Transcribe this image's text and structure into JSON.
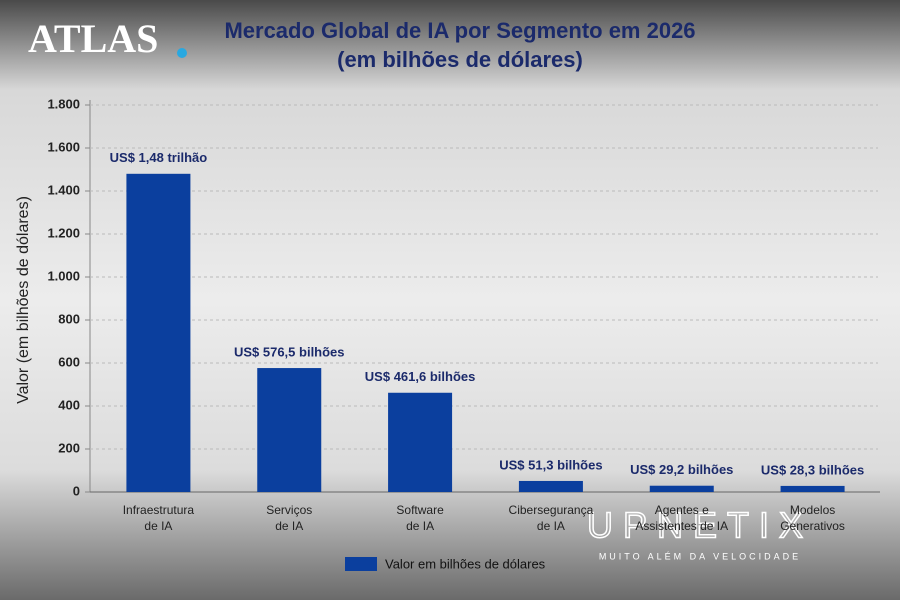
{
  "branding": {
    "logo": "ATLAS",
    "watermark": "UPNETIX",
    "watermark_tagline": "MUITO ALÉM DA VELOCIDADE"
  },
  "chart_data": {
    "type": "bar",
    "title": "Mercado Global de IA por Segmento em 2026",
    "subtitle": "(em bilhões de dólares)",
    "y_label": "Valor (em bilhões de dólares)",
    "categories": [
      "Infraestrutura\nde IA",
      "Serviços\nde IA",
      "Software\nde IA",
      "Cibersegurança\nde IA",
      "Agentes e\nAssistentes de IA",
      "Modelos\nGenerativos"
    ],
    "series": [
      {
        "name": "Valor em bilhões de dólares",
        "color": "#0b3f9e",
        "values": [
          1480,
          576.5,
          461.6,
          51.3,
          29.2,
          28.3
        ],
        "value_labels": [
          "US$ 1,48 trilhão",
          "US$ 576,5 bilhões",
          "US$ 461,6 bilhões",
          "US$ 51,3 bilhões",
          "US$ 29,2 bilhões",
          "US$ 28,3 bilhões"
        ]
      }
    ],
    "ylim": [
      0,
      1800
    ],
    "yticks": [
      0,
      200,
      400,
      600,
      800,
      {
        "value": 1000,
        "label": "1.000"
      },
      {
        "value": 1200,
        "label": "1.200"
      },
      {
        "value": 1400,
        "label": "1.400"
      },
      {
        "value": 1600,
        "label": "1.600"
      },
      {
        "value": 1800,
        "label": "1.800"
      }
    ],
    "grid": true,
    "legend": "bottom"
  }
}
